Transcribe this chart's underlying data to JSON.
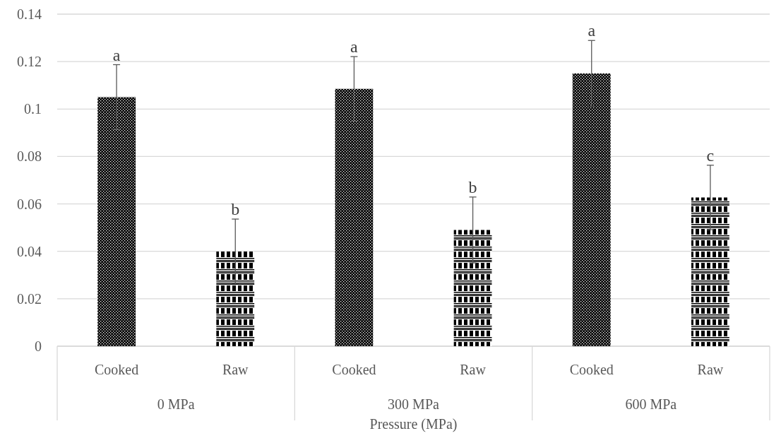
{
  "chart_data": {
    "type": "bar",
    "xlabel": "Pressure (MPa)",
    "categories": [
      "0 MPa",
      "300 MPa",
      "600 MPa"
    ],
    "series": [
      {
        "name": "Cooked",
        "color": "#000000",
        "values": [
          0.105,
          0.1085,
          0.115
        ],
        "errors": [
          0.0137,
          0.0136,
          0.0139
        ],
        "value_labels": [
          "a",
          "a",
          "a"
        ]
      },
      {
        "name": "Raw",
        "color": "#000000",
        "values": [
          0.04,
          0.049,
          0.0627
        ],
        "errors": [
          0.0136,
          0.0139,
          0.0136
        ],
        "value_labels": [
          "b",
          "b",
          "c"
        ]
      }
    ],
    "ylim": [
      0,
      0.14
    ],
    "yticks": [
      0,
      0.02,
      0.04,
      0.06,
      0.08,
      {
        "value": 0.1,
        "label": "0.1"
      },
      0.12,
      0.14
    ],
    "grid": "y"
  }
}
